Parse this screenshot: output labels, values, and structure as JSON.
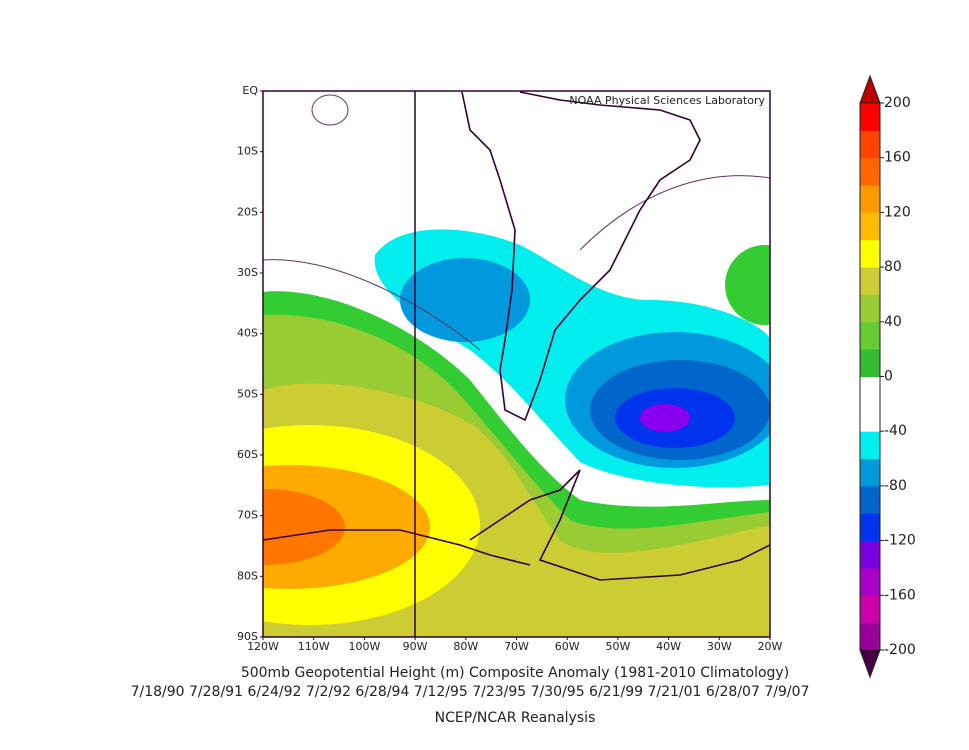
{
  "map": {
    "watermark": "NOAA Physical Sciences Laboratory",
    "title": "500mb Geopotential Height (m) Composite Anomaly (1981-2010 Climatology)",
    "dates": "7/18/90 7/28/91 6/24/92 7/2/92 6/28/94 7/12/95 7/23/95 7/30/95 6/21/99 7/21/01 6/28/07 7/9/07",
    "credit": "NCEP/NCAR Reanalysis",
    "lat_labels": [
      "EQ",
      "10S",
      "20S",
      "30S",
      "40S",
      "50S",
      "60S",
      "70S",
      "80S",
      "90S"
    ],
    "lon_labels": [
      "120W",
      "110W",
      "100W",
      "90W",
      "80W",
      "70W",
      "60W",
      "50W",
      "40W",
      "30W",
      "20W"
    ],
    "colorbar": {
      "lim": [
        -200,
        200
      ],
      "ticks": [
        200,
        160,
        120,
        80,
        40,
        0,
        -40,
        -80,
        -120,
        -160,
        -200
      ],
      "colors": [
        "#990099",
        "#cc00aa",
        "#aa00cc",
        "#7a00dd",
        "#0033ee",
        "#0066cc",
        "#0099dd",
        "#00eeee",
        "#ffffff",
        "#ffffff",
        "#33bb33",
        "#66cc33",
        "#99cc33",
        "#cccc33",
        "#ffff00",
        "#ffbb00",
        "#ff9900",
        "#ff6600",
        "#ff4400",
        "#ff0000"
      ],
      "under_color": "#440044",
      "over_color": "#bb0000"
    }
  }
}
